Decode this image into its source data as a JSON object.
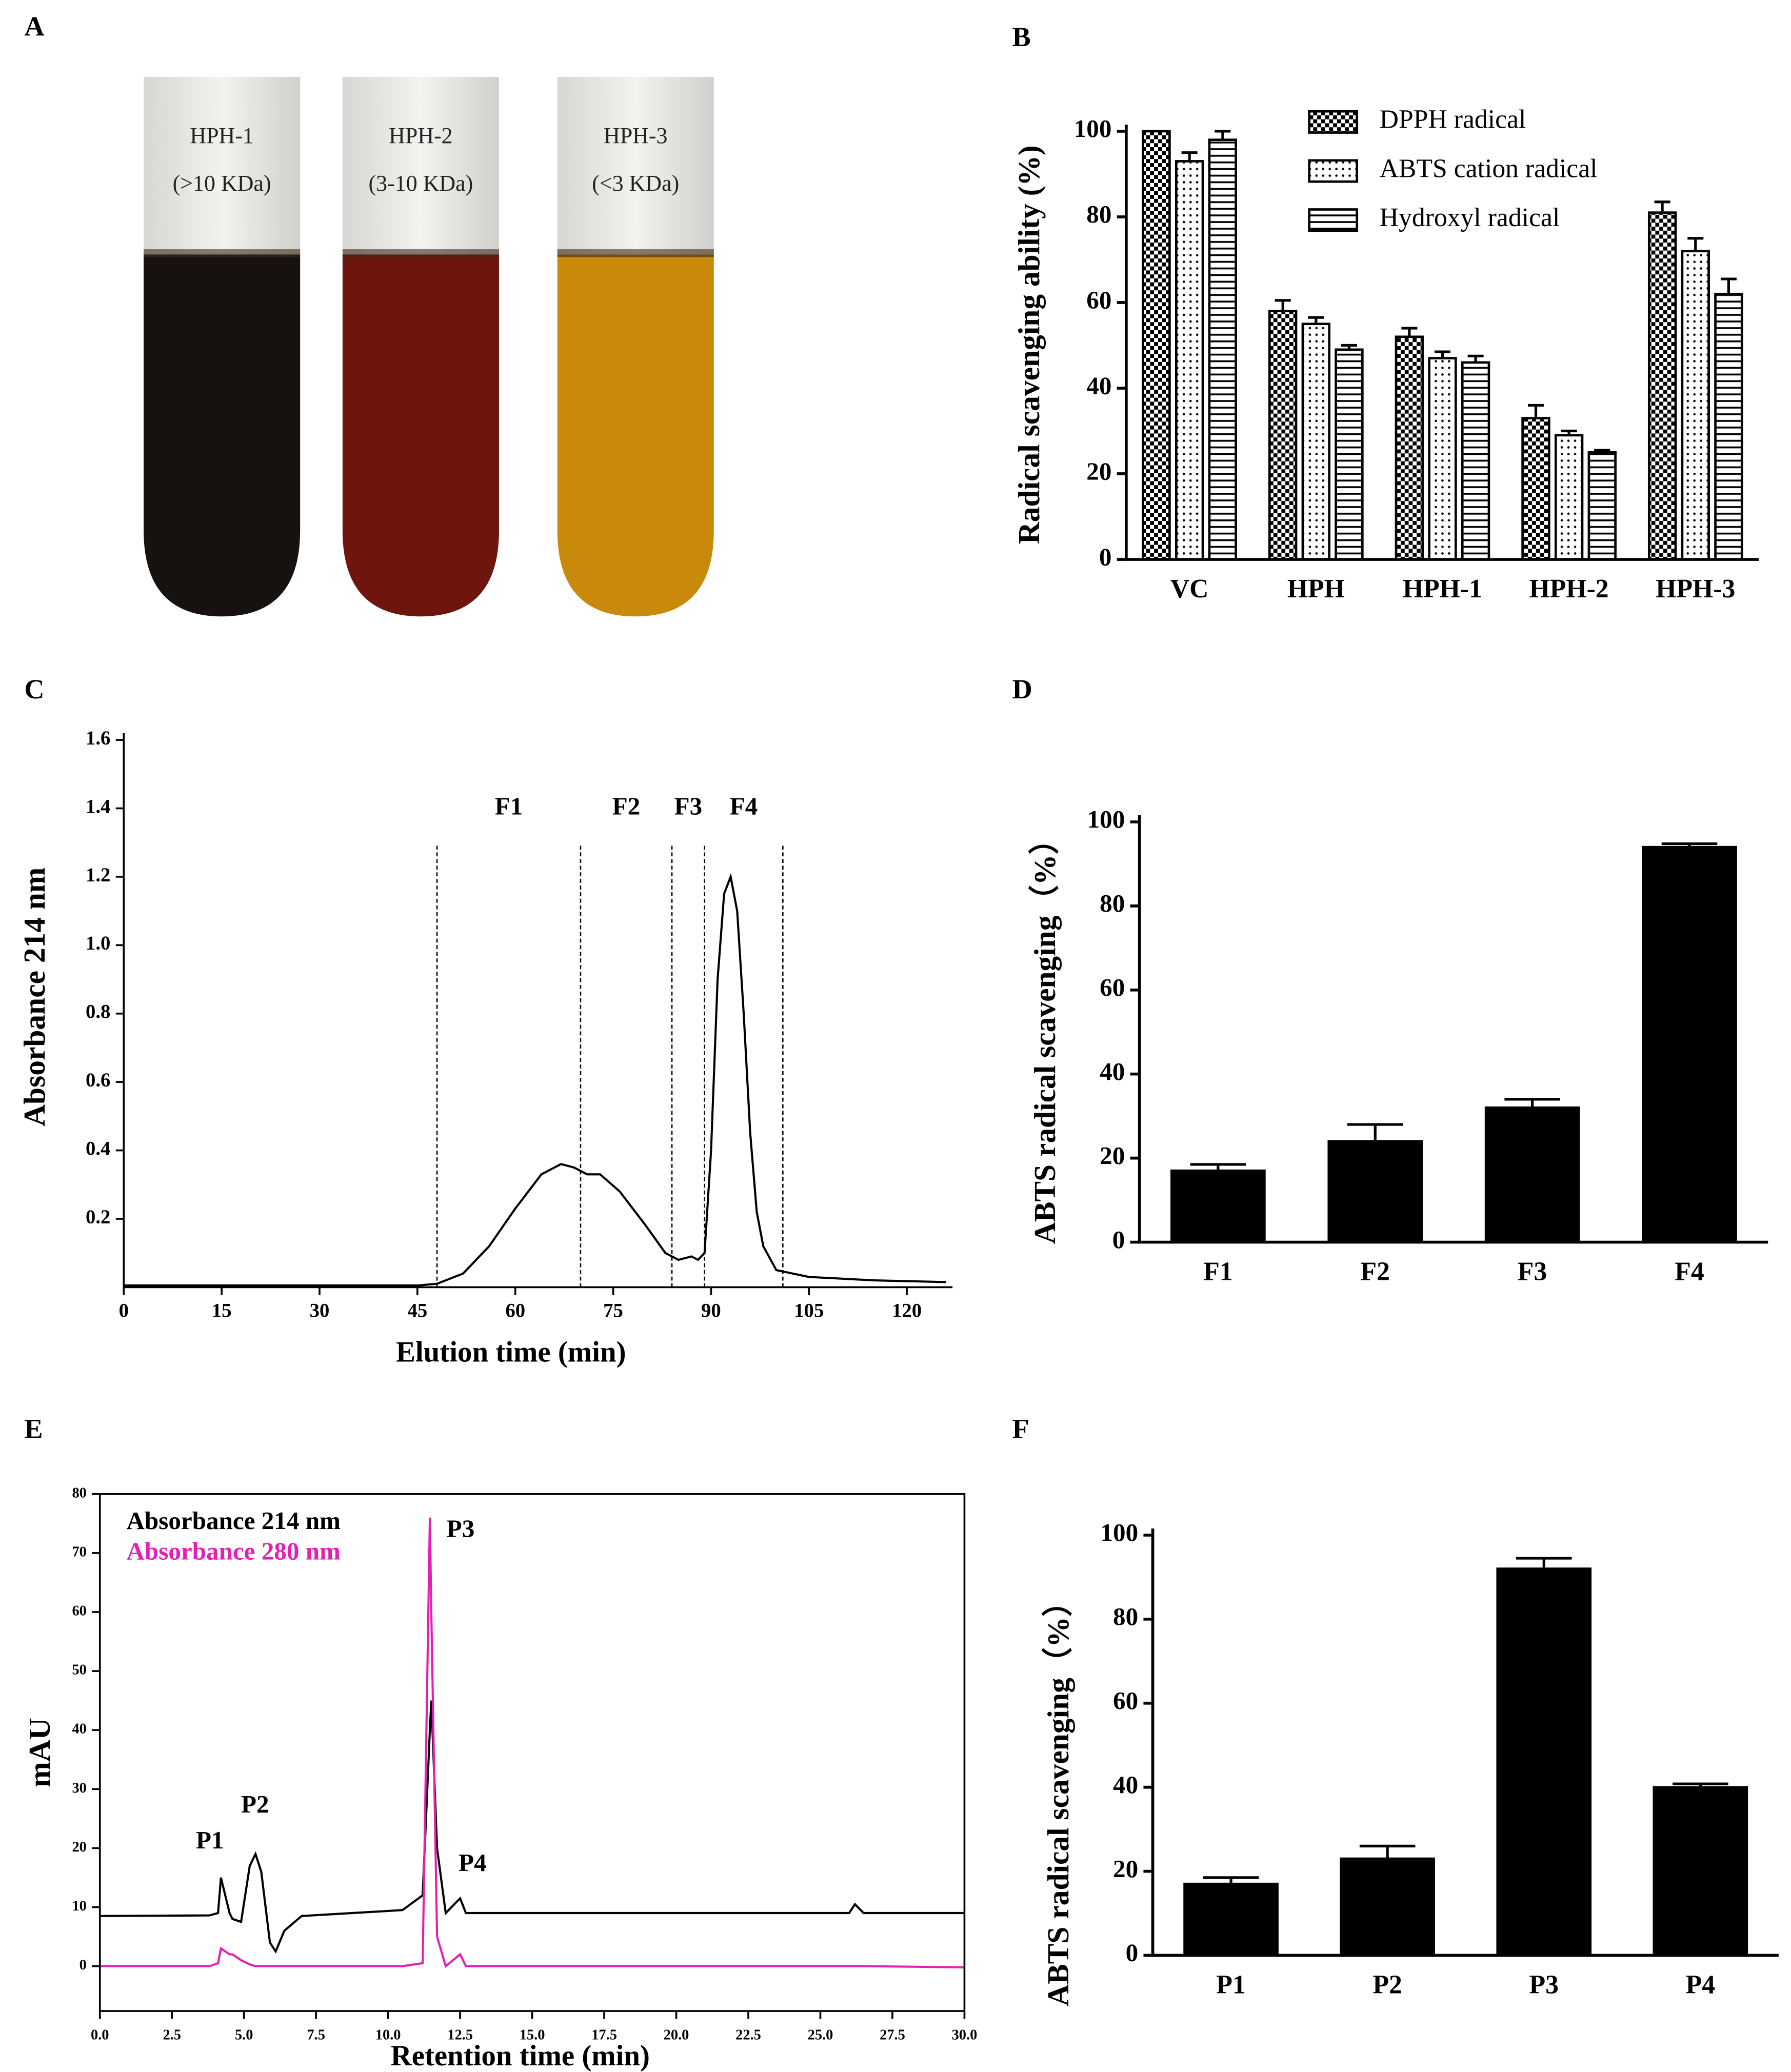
{
  "panels": [
    "A",
    "B",
    "C",
    "D",
    "E",
    "F"
  ],
  "photo": {
    "tubes": [
      {
        "name": "HPH-1",
        "size": "(>10 KDa)",
        "color": "#17120f"
      },
      {
        "name": "HPH-2",
        "size": "(3-10 KDa)",
        "color": "#6e160e"
      },
      {
        "name": "HPH-3",
        "size": "(<3 KDa)",
        "color": "#c98a0c"
      }
    ]
  },
  "chart_data": [
    {
      "type": "bar",
      "ylabel": "Radical scavenging ability (%)",
      "categories": [
        "VC",
        "HPH",
        "HPH-1",
        "HPH-2",
        "HPH-3"
      ],
      "series": [
        {
          "name": "DPPH radical",
          "pattern": "checker",
          "values": [
            100,
            58,
            52,
            33,
            81
          ],
          "errors": [
            0,
            2.5,
            2,
            3,
            2.5
          ]
        },
        {
          "name": "ABTS cation radical",
          "pattern": "dots",
          "values": [
            93,
            55,
            47,
            29,
            72
          ],
          "errors": [
            2,
            1.5,
            1.5,
            1,
            3
          ]
        },
        {
          "name": "Hydroxyl radical",
          "pattern": "hlines",
          "values": [
            98,
            49,
            46,
            25,
            62
          ],
          "errors": [
            2,
            1,
            1.5,
            0.5,
            3.5
          ]
        }
      ],
      "ylim": [
        0,
        100
      ],
      "yticks": [
        0,
        20,
        40,
        60,
        80,
        100
      ],
      "legend": "upper right"
    },
    {
      "type": "line",
      "xlabel": "Elution time (min)",
      "ylabel": "Absorbance 214 nm",
      "color": "#000000",
      "x": [
        0,
        45,
        48,
        52,
        56,
        60,
        64,
        67,
        69,
        71,
        73,
        76,
        80,
        83,
        85,
        87,
        88,
        89,
        90,
        91,
        92,
        93,
        94,
        95,
        96,
        97,
        98,
        100,
        105,
        115,
        126
      ],
      "values": [
        0.005,
        0.005,
        0.01,
        0.04,
        0.12,
        0.23,
        0.33,
        0.36,
        0.35,
        0.33,
        0.33,
        0.28,
        0.18,
        0.1,
        0.08,
        0.09,
        0.08,
        0.1,
        0.4,
        0.9,
        1.15,
        1.2,
        1.1,
        0.8,
        0.45,
        0.22,
        0.12,
        0.05,
        0.03,
        0.02,
        0.015
      ],
      "dividers": [
        48,
        70,
        84,
        89,
        101
      ],
      "regions": [
        "F1",
        "F2",
        "F3",
        "F4"
      ],
      "xlim": [
        0,
        127
      ],
      "xticks": [
        0,
        15,
        30,
        45,
        60,
        75,
        90,
        105,
        120
      ],
      "ylim": [
        0,
        1.62
      ],
      "yticks": [
        0.2,
        0.4,
        0.6,
        0.8,
        {
          "value": 1,
          "label": "1.0"
        },
        1.2,
        1.4,
        1.6
      ]
    },
    {
      "type": "bar",
      "ylabel": "ABTS radical scavenging（%）",
      "color": "#000000",
      "categories": [
        "F1",
        "F2",
        "F3",
        "F4"
      ],
      "values": [
        17,
        24,
        32,
        94
      ],
      "errors": [
        1.5,
        4,
        2,
        0.8
      ],
      "ylim": [
        0,
        100
      ],
      "yticks": [
        0,
        20,
        40,
        60,
        80,
        100
      ]
    },
    {
      "type": "line",
      "xlabel": "Retention time (min)",
      "ylabel": "mAU",
      "legend": "upper left",
      "x": [
        0,
        3.8,
        4.1,
        4.2,
        4.5,
        4.6,
        4.9,
        5.2,
        5.4,
        5.6,
        5.9,
        6.1,
        6.4,
        7,
        10.5,
        11.2,
        11.45,
        11.5,
        11.7,
        12,
        12.5,
        12.7,
        26,
        26.2,
        26.5,
        30
      ],
      "series": [
        {
          "name": "Absorbance 214 nm",
          "color": "#000000",
          "values": [
            8.5,
            8.6,
            9,
            15,
            9,
            8,
            7.5,
            17,
            19,
            16,
            4,
            2.5,
            6,
            8.5,
            9.5,
            12,
            40,
            45,
            20,
            9,
            11.5,
            9,
            9,
            10.5,
            9,
            9
          ]
        },
        {
          "name": "Absorbance 280 nm",
          "color": "#e61eb4",
          "values": [
            0,
            0,
            0.5,
            3,
            2,
            2,
            1,
            0.3,
            0,
            0,
            0,
            0,
            0,
            0,
            0,
            0.5,
            76,
            60,
            5,
            0,
            2,
            0,
            0,
            0,
            0,
            -0.2
          ]
        }
      ],
      "annotations": [
        "P1",
        "P2",
        "P3",
        "P4"
      ],
      "xlim": [
        0,
        30
      ],
      "xticks": [
        {
          "value": 0,
          "label": "0.0"
        },
        2.5,
        {
          "value": 5,
          "label": "5.0"
        },
        7.5,
        {
          "value": 10,
          "label": "10.0"
        },
        12.5,
        {
          "value": 15,
          "label": "15.0"
        },
        17.5,
        {
          "value": 20,
          "label": "20.0"
        },
        22.5,
        {
          "value": 25,
          "label": "25.0"
        },
        27.5,
        {
          "value": 30,
          "label": "30.0"
        }
      ],
      "ylim": [
        -7.6,
        80
      ],
      "yticks": [
        0,
        10,
        20,
        30,
        40,
        50,
        60,
        70,
        80
      ]
    },
    {
      "type": "bar",
      "ylabel": "ABTS radical scavenging（%）",
      "color": "#000000",
      "categories": [
        "P1",
        "P2",
        "P3",
        "P4"
      ],
      "values": [
        17,
        23,
        92,
        40
      ],
      "errors": [
        1.5,
        3,
        2.5,
        0.8
      ],
      "ylim": [
        0,
        100
      ],
      "yticks": [
        0,
        20,
        40,
        60,
        80,
        100
      ]
    }
  ]
}
